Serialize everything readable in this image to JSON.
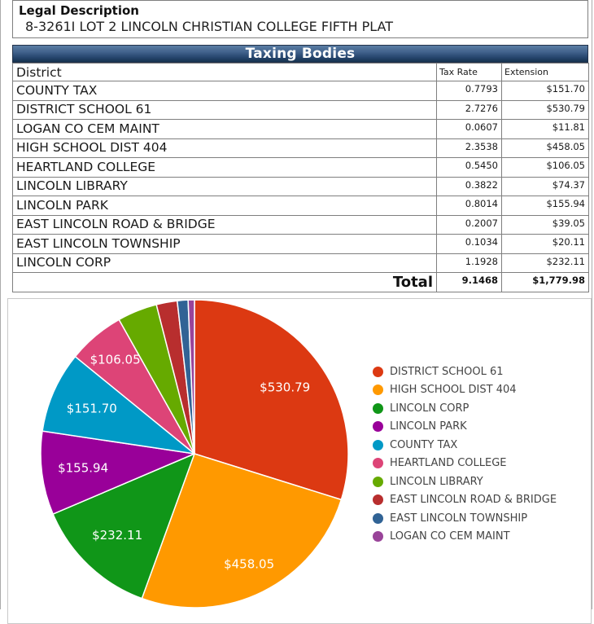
{
  "legal": {
    "title": "Legal Description",
    "value": "8-3261I LOT 2 LINCOLN CHRISTIAN COLLEGE FIFTH PLAT"
  },
  "table": {
    "title": "Taxing Bodies",
    "columns": {
      "district": "District",
      "tax_rate": "Tax Rate",
      "extension": "Extension"
    },
    "rows": [
      {
        "district": "COUNTY TAX",
        "tax_rate": "0.7793",
        "extension": "$151.70"
      },
      {
        "district": "DISTRICT SCHOOL 61",
        "tax_rate": "2.7276",
        "extension": "$530.79"
      },
      {
        "district": "LOGAN CO CEM MAINT",
        "tax_rate": "0.0607",
        "extension": "$11.81"
      },
      {
        "district": "HIGH SCHOOL DIST 404",
        "tax_rate": "2.3538",
        "extension": "$458.05"
      },
      {
        "district": "HEARTLAND COLLEGE",
        "tax_rate": "0.5450",
        "extension": "$106.05"
      },
      {
        "district": "LINCOLN LIBRARY",
        "tax_rate": "0.3822",
        "extension": "$74.37"
      },
      {
        "district": "LINCOLN PARK",
        "tax_rate": "0.8014",
        "extension": "$155.94"
      },
      {
        "district": "EAST LINCOLN ROAD & BRIDGE",
        "tax_rate": "0.2007",
        "extension": "$39.05"
      },
      {
        "district": "EAST LINCOLN TOWNSHIP",
        "tax_rate": "0.1034",
        "extension": "$20.11"
      },
      {
        "district": "LINCOLN CORP",
        "tax_rate": "1.1928",
        "extension": "$232.11"
      }
    ],
    "total": {
      "label": "Total",
      "tax_rate": "9.1468",
      "extension": "$1,779.98"
    }
  },
  "chart_data": {
    "type": "pie",
    "title": "",
    "legend_position": "right",
    "direction": "clockwise",
    "start_angle_deg": 0,
    "total": 1779.98,
    "slice_label_color": "#ffffff",
    "slices": [
      {
        "label": "DISTRICT SCHOOL 61",
        "value": 530.79,
        "display": "$530.79",
        "color": "#dc3912",
        "show_label": true
      },
      {
        "label": "HIGH SCHOOL DIST 404",
        "value": 458.05,
        "display": "$458.05",
        "color": "#ff9900",
        "show_label": true
      },
      {
        "label": "LINCOLN CORP",
        "value": 232.11,
        "display": "$232.11",
        "color": "#109618",
        "show_label": true
      },
      {
        "label": "LINCOLN PARK",
        "value": 155.94,
        "display": "$155.94",
        "color": "#990099",
        "show_label": true
      },
      {
        "label": "COUNTY TAX",
        "value": 151.7,
        "display": "$151.70",
        "color": "#0099c6",
        "show_label": true
      },
      {
        "label": "HEARTLAND COLLEGE",
        "value": 106.05,
        "display": "$106.05",
        "color": "#dd4477",
        "show_label": true
      },
      {
        "label": "LINCOLN LIBRARY",
        "value": 74.37,
        "display": "$74.37",
        "color": "#66aa00",
        "show_label": false
      },
      {
        "label": "EAST LINCOLN ROAD & BRIDGE",
        "value": 39.05,
        "display": "$39.05",
        "color": "#b82e2e",
        "show_label": false
      },
      {
        "label": "EAST LINCOLN TOWNSHIP",
        "value": 20.11,
        "display": "$20.11",
        "color": "#316395",
        "show_label": false
      },
      {
        "label": "LOGAN CO CEM MAINT",
        "value": 11.81,
        "display": "$11.81",
        "color": "#994499",
        "show_label": false
      }
    ]
  }
}
